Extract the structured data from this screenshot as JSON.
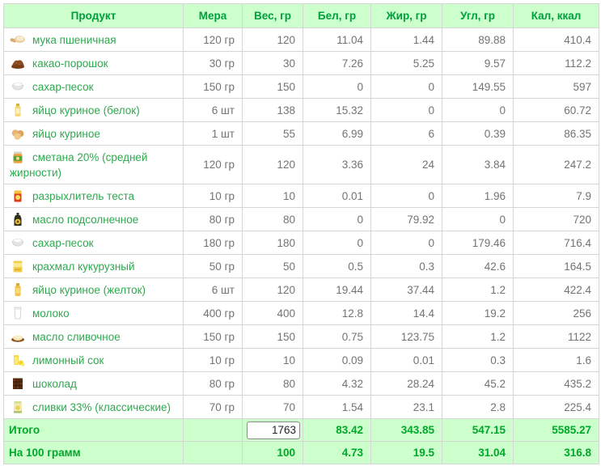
{
  "colors": {
    "header_bg": "#ccffcc",
    "header_text": "#00a03c",
    "product_text": "#2fa94f",
    "footer_text": "#00a82a",
    "number_text": "#737373",
    "border": "#d5d5d5"
  },
  "table": {
    "headers": [
      "Продукт",
      "Мера",
      "Вес, гр",
      "Бел, гр",
      "Жир, гр",
      "Угл, гр",
      "Кал, ккал"
    ],
    "rows": [
      {
        "icon": "flour-icon",
        "product": "мука пшеничная",
        "measure": "120 гр",
        "weight": "120",
        "protein": "11.04",
        "fat": "1.44",
        "carbs": "89.88",
        "kcal": "410.4"
      },
      {
        "icon": "cocoa-icon",
        "product": "какао-порошок",
        "measure": "30 гр",
        "weight": "30",
        "protein": "7.26",
        "fat": "5.25",
        "carbs": "9.57",
        "kcal": "112.2"
      },
      {
        "icon": "sugar-icon",
        "product": "сахар-песок",
        "measure": "150 гр",
        "weight": "150",
        "protein": "0",
        "fat": "0",
        "carbs": "149.55",
        "kcal": "597"
      },
      {
        "icon": "egg-white-icon",
        "product": "яйцо куриное (белок)",
        "measure": "6 шт",
        "weight": "138",
        "protein": "15.32",
        "fat": "0",
        "carbs": "0",
        "kcal": "60.72"
      },
      {
        "icon": "egg-icon",
        "product": "яйцо куриное",
        "measure": "1 шт",
        "weight": "55",
        "protein": "6.99",
        "fat": "6",
        "carbs": "0.39",
        "kcal": "86.35"
      },
      {
        "icon": "sour-cream-icon",
        "product": "сметана 20% (средней жирности)",
        "measure": "120 гр",
        "weight": "120",
        "protein": "3.36",
        "fat": "24",
        "carbs": "3.84",
        "kcal": "247.2"
      },
      {
        "icon": "baking-powder-icon",
        "product": "разрыхлитель теста",
        "measure": "10 гр",
        "weight": "10",
        "protein": "0.01",
        "fat": "0",
        "carbs": "1.96",
        "kcal": "7.9"
      },
      {
        "icon": "sunflower-oil-icon",
        "product": "масло подсолнечное",
        "measure": "80 гр",
        "weight": "80",
        "protein": "0",
        "fat": "79.92",
        "carbs": "0",
        "kcal": "720"
      },
      {
        "icon": "sugar-icon",
        "product": "сахар-песок",
        "measure": "180 гр",
        "weight": "180",
        "protein": "0",
        "fat": "0",
        "carbs": "179.46",
        "kcal": "716.4"
      },
      {
        "icon": "corn-starch-icon",
        "product": "крахмал кукурузный",
        "measure": "50 гр",
        "weight": "50",
        "protein": "0.5",
        "fat": "0.3",
        "carbs": "42.6",
        "kcal": "164.5"
      },
      {
        "icon": "egg-yolk-icon",
        "product": "яйцо куриное (желток)",
        "measure": "6 шт",
        "weight": "120",
        "protein": "19.44",
        "fat": "37.44",
        "carbs": "1.2",
        "kcal": "422.4"
      },
      {
        "icon": "milk-icon",
        "product": "молоко",
        "measure": "400 гр",
        "weight": "400",
        "protein": "12.8",
        "fat": "14.4",
        "carbs": "19.2",
        "kcal": "256"
      },
      {
        "icon": "butter-icon",
        "product": "масло сливочное",
        "measure": "150 гр",
        "weight": "150",
        "protein": "0.75",
        "fat": "123.75",
        "carbs": "1.2",
        "kcal": "1122"
      },
      {
        "icon": "lemon-juice-icon",
        "product": "лимонный сок",
        "measure": "10 гр",
        "weight": "10",
        "protein": "0.09",
        "fat": "0.01",
        "carbs": "0.3",
        "kcal": "1.6"
      },
      {
        "icon": "chocolate-icon",
        "product": "шоколад",
        "measure": "80 гр",
        "weight": "80",
        "protein": "4.32",
        "fat": "28.24",
        "carbs": "45.2",
        "kcal": "435.2"
      },
      {
        "icon": "cream-icon",
        "product": "сливки 33% (классические)",
        "measure": "70 гр",
        "weight": "70",
        "protein": "1.54",
        "fat": "23.1",
        "carbs": "2.8",
        "kcal": "225.4"
      }
    ],
    "totals": {
      "label": "Итого",
      "measure": "",
      "weight_input": "1763",
      "protein": "83.42",
      "fat": "343.85",
      "carbs": "547.15",
      "kcal": "5585.27"
    },
    "per100": {
      "label": "На 100 грамм",
      "measure": "",
      "weight": "100",
      "protein": "4.73",
      "fat": "19.5",
      "carbs": "31.04",
      "kcal": "316.8"
    }
  }
}
